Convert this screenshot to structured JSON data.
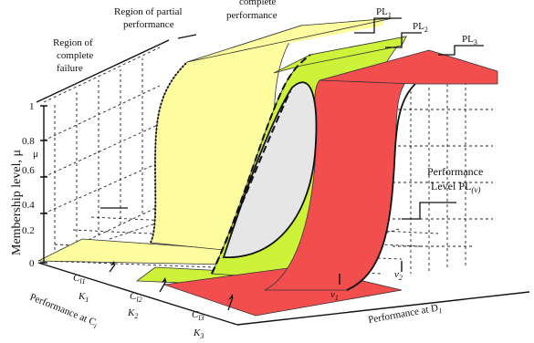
{
  "diagram": {
    "y_axis_label": "Membership level, μ",
    "y_ticks": [
      "1",
      "0.8",
      "0.6",
      "0.4",
      "0.2",
      "0"
    ],
    "mu_symbol": "μ",
    "regions": {
      "complete_failure": [
        "Region of",
        "complete",
        "failure"
      ],
      "partial_performance": [
        "Region of partial",
        "performance"
      ],
      "complete_performance": [
        "complete",
        "performance"
      ]
    },
    "levels": [
      {
        "base": "PL",
        "sub": "1",
        "color": "#fdfda0"
      },
      {
        "base": "PL",
        "sub": "2",
        "color": "#ccf23a"
      },
      {
        "base": "PL",
        "sub": "3",
        "color": "#f24e4e"
      }
    ],
    "performance_level": {
      "line1": "Performance",
      "line2": "Level PL",
      "sub": "(v)"
    },
    "ci_labels": [
      {
        "base": "C",
        "sub": "l1"
      },
      {
        "base": "C",
        "sub": "l2"
      },
      {
        "base": "C",
        "sub": "l3"
      }
    ],
    "k_labels": [
      {
        "base": "K",
        "sub": "1"
      },
      {
        "base": "K",
        "sub": "2"
      },
      {
        "base": "K",
        "sub": "3"
      }
    ],
    "v_labels": [
      {
        "base": "v",
        "sub": "1"
      },
      {
        "base": "v",
        "sub": "2"
      }
    ],
    "x_axis_ci": {
      "base": "Performance at C",
      "sub": "i"
    },
    "x_axis_di": {
      "base": "Performance at D",
      "sub": "1"
    },
    "colors": {
      "yellow": "#fdfda0",
      "green": "#ccf23a",
      "red": "#f24e4e",
      "ellipse": "#e6e6e6"
    }
  }
}
